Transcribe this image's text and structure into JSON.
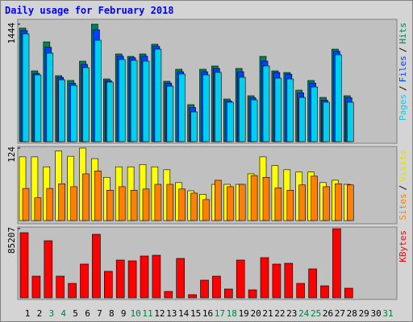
{
  "chart_data": {
    "type": "bar",
    "title": "Daily usage for February 2018",
    "categories": [
      "1",
      "2",
      "3",
      "4",
      "5",
      "6",
      "7",
      "8",
      "9",
      "10",
      "11",
      "12",
      "13",
      "14",
      "15",
      "16",
      "17",
      "18",
      "19",
      "20",
      "21",
      "22",
      "23",
      "24",
      "25",
      "26",
      "27",
      "28",
      "29",
      "30",
      "31"
    ],
    "category_colors": [
      "#000000",
      "#000000",
      "#008040",
      "#008040",
      "#000000",
      "#000000",
      "#000000",
      "#000000",
      "#000000",
      "#008040",
      "#008040",
      "#000000",
      "#000000",
      "#000000",
      "#000000",
      "#000000",
      "#008040",
      "#008040",
      "#000000",
      "#000000",
      "#000000",
      "#000000",
      "#000000",
      "#008040",
      "#008040",
      "#000000",
      "#000000",
      "#000000",
      "#000000",
      "#000000",
      "#008040"
    ],
    "legend_separator": "/",
    "panels": [
      {
        "ylim": [
          0,
          1444
        ],
        "yticks": [
          1444
        ],
        "series": [
          {
            "name": "Hits",
            "color": "#00805c",
            "values": [
              1395,
              870,
              1226,
              811,
              752,
              989,
              1444,
              771,
              1078,
              1048,
              1078,
              1197,
              742,
              890,
              455,
              890,
              930,
              524,
              900,
              564,
              1048,
              870,
              850,
              633,
              752,
              544,
              1137,
              564,
              null,
              null,
              null
            ]
          },
          {
            "name": "Files",
            "color": "#0040ff",
            "values": [
              1365,
              840,
              1160,
              790,
              720,
              950,
              1375,
              750,
              1050,
              1030,
              1050,
              1170,
              720,
              860,
              420,
              860,
              900,
              500,
              860,
              540,
              990,
              850,
              830,
              600,
              720,
              510,
              1110,
              540,
              null,
              null,
              null
            ]
          },
          {
            "name": "Pages",
            "color": "#00d0f0",
            "values": [
              1325,
              821,
              1088,
              761,
              692,
              910,
              1246,
              732,
              1009,
              999,
              989,
              1137,
              682,
              831,
              366,
              821,
              851,
              485,
              791,
              514,
              930,
              781,
              771,
              544,
              672,
              485,
              1068,
              485,
              null,
              null,
              null
            ]
          }
        ]
      },
      {
        "ylim": [
          0,
          124
        ],
        "yticks": [
          124
        ],
        "series": [
          {
            "name": "Visits",
            "color": "#ffff00",
            "values": [
              109,
              109,
              92,
              119,
              110,
              124,
              106,
              74,
              92,
              92,
              96,
              92,
              87,
              65,
              51,
              45,
              62,
              62,
              62,
              80,
              109,
              94,
              87,
              83,
              83,
              65,
              69,
              62,
              null,
              null,
              null
            ]
          },
          {
            "name": "Sites",
            "color": "#ff8000",
            "values": [
              55,
              39,
              55,
              63,
              58,
              80,
              85,
              52,
              58,
              52,
              54,
              62,
              62,
              54,
              47,
              36,
              69,
              58,
              62,
              77,
              74,
              56,
              52,
              61,
              76,
              58,
              63,
              61,
              null,
              null,
              null
            ]
          }
        ]
      },
      {
        "ylim": [
          0,
          85207
        ],
        "yticks": [
          85207
        ],
        "series": [
          {
            "name": "KBytes",
            "color": "#ff0000",
            "values": [
              80255,
              26752,
              70347,
              26752,
              17834,
              41614,
              78273,
              32697,
              46568,
              45577,
              51522,
              52513,
              7927,
              48550,
              3963,
              21798,
              26752,
              10899,
              46568,
              9908,
              49541,
              41614,
              42605,
              17834,
              35669,
              14862,
              85207,
              11890,
              null,
              null,
              null
            ]
          }
        ]
      }
    ]
  }
}
